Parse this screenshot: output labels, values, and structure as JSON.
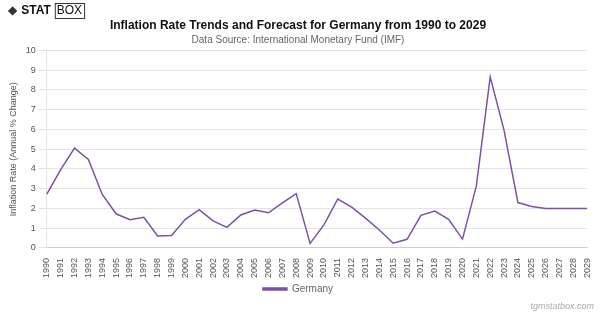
{
  "chart_data": {
    "type": "line",
    "title": "Inflation Rate Trends and Forecast for Germany from 1990 to 2029",
    "subtitle": "Data Source: International Monetary Fund (IMF)",
    "ylabel": "Inflation Rate (Annual % Change)",
    "annotations": [
      "◆",
      "STAT",
      "BOX",
      "tgmstatbox.com"
    ],
    "categories": [
      1990,
      1991,
      1992,
      1993,
      1994,
      1995,
      1996,
      1997,
      1998,
      1999,
      2000,
      2001,
      2002,
      2003,
      2004,
      2005,
      2006,
      2007,
      2008,
      2009,
      2010,
      2011,
      2012,
      2013,
      2014,
      2015,
      2016,
      2017,
      2018,
      2019,
      2020,
      2021,
      2022,
      2023,
      2024,
      2025,
      2026,
      2027,
      2028,
      2029
    ],
    "series": [
      {
        "name": "Germany",
        "color": "#7b52ab",
        "values": [
          2.72,
          3.97,
          5.05,
          4.48,
          2.71,
          1.73,
          1.43,
          1.55,
          0.61,
          0.63,
          1.45,
          1.94,
          1.37,
          1.04,
          1.67,
          1.92,
          1.78,
          2.28,
          2.75,
          0.23,
          1.17,
          2.48,
          2.07,
          1.51,
          0.91,
          0.24,
          0.44,
          1.65,
          1.87,
          1.45,
          0.45,
          3.14,
          8.66,
          5.95,
          2.3,
          2.1,
          2.0,
          2.0,
          2.0,
          2.0
        ]
      }
    ],
    "ylim": [
      0,
      10
    ],
    "yticks": [
      0,
      1,
      2,
      3,
      4,
      5,
      6,
      7,
      8,
      9,
      10
    ],
    "grid": true,
    "legend": "bottom"
  }
}
